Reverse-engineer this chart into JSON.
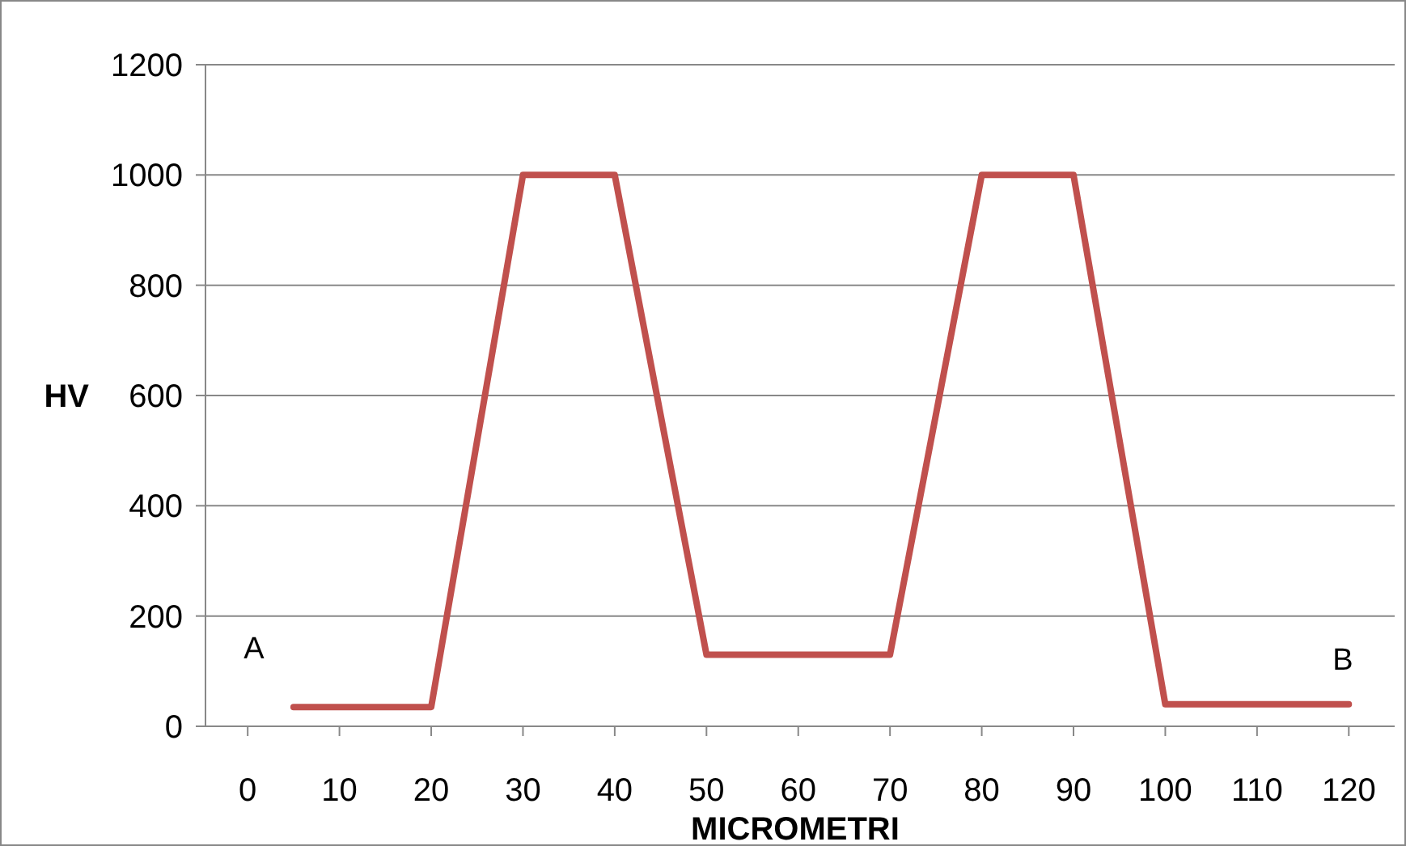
{
  "chart_data": {
    "type": "line",
    "xlabel": "MICROMETRI",
    "ylabel": "HV",
    "x": [
      5,
      20,
      30,
      40,
      50,
      70,
      80,
      90,
      100,
      120
    ],
    "series": [
      {
        "color": "#c0504d",
        "values": [
          35,
          35,
          1000,
          1000,
          130,
          130,
          1000,
          1000,
          40,
          40
        ]
      }
    ],
    "xlim": [
      -4.6,
      125
    ],
    "xticks": [
      0,
      10,
      20,
      30,
      40,
      50,
      60,
      70,
      80,
      90,
      100,
      110,
      120
    ],
    "ylim": [
      0,
      1200
    ],
    "yticks": [
      0,
      200,
      400,
      600,
      800,
      1000,
      1200
    ],
    "grid": "y",
    "marker": "none",
    "line_style": "solid",
    "annotations": [
      "A",
      "B"
    ]
  }
}
